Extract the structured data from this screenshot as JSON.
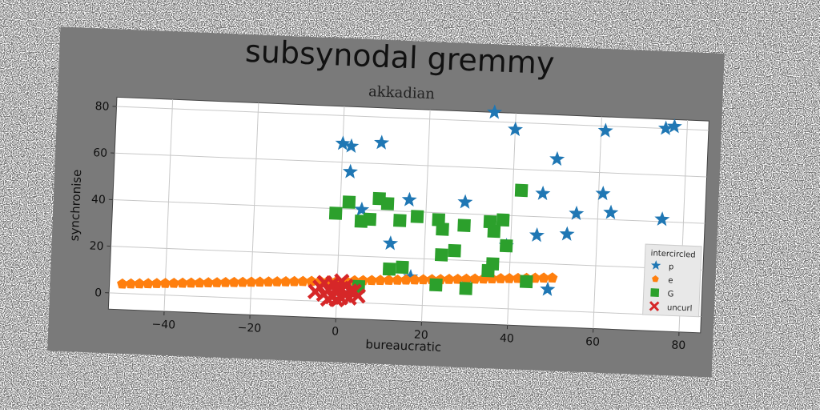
{
  "chart_data": {
    "type": "scatter",
    "title": "subsynodal gremmy",
    "subtitle": "akkadian",
    "xlabel": "bureaucratic",
    "ylabel": "synchronise",
    "xlim": [
      -53,
      85
    ],
    "ylim": [
      -7,
      84
    ],
    "x_ticks": [
      -40,
      -20,
      0,
      20,
      40,
      60,
      80
    ],
    "y_ticks": [
      0,
      20,
      40,
      60,
      80
    ],
    "grid": true,
    "legend": {
      "title": "intercircled",
      "placement": "lower-right"
    },
    "series": [
      {
        "name": "p",
        "marker": "star",
        "color": "#1f77b4",
        "points": [
          [
            35,
            84
          ],
          [
            40,
            77
          ],
          [
            61,
            78
          ],
          [
            75,
            80
          ],
          [
            77,
            81
          ],
          [
            0,
            68
          ],
          [
            2,
            67
          ],
          [
            9,
            69
          ],
          [
            50,
            65
          ],
          [
            2,
            56
          ],
          [
            47,
            50
          ],
          [
            61,
            51
          ],
          [
            16,
            45
          ],
          [
            29,
            45
          ],
          [
            55,
            42
          ],
          [
            63,
            43
          ],
          [
            75,
            41
          ],
          [
            5,
            40
          ],
          [
            53,
            33
          ],
          [
            46,
            32
          ],
          [
            39,
            27
          ],
          [
            12,
            26
          ],
          [
            30,
            11
          ],
          [
            49,
            9
          ],
          [
            23,
            9
          ],
          [
            17,
            12
          ],
          [
            3,
            6
          ]
        ]
      },
      {
        "name": "e",
        "marker": "pentagon",
        "color": "#ff7f0e",
        "points": [
          [
            -50,
            4
          ],
          [
            -48,
            4.2
          ],
          [
            -46,
            4.4
          ],
          [
            -44,
            4.6
          ],
          [
            -42,
            4.8
          ],
          [
            -40,
            5
          ],
          [
            -38,
            5.2
          ],
          [
            -36,
            5.4
          ],
          [
            -34,
            5.6
          ],
          [
            -32,
            5.8
          ],
          [
            -30,
            6
          ],
          [
            -28,
            6.2
          ],
          [
            -26,
            6.4
          ],
          [
            -24,
            6.6
          ],
          [
            -22,
            6.8
          ],
          [
            -20,
            7
          ],
          [
            -18,
            7.2
          ],
          [
            -16,
            7.4
          ],
          [
            -14,
            7.6
          ],
          [
            -12,
            7.8
          ],
          [
            -10,
            8
          ],
          [
            -8,
            8.2
          ],
          [
            -6,
            8.4
          ],
          [
            -4,
            8.6
          ],
          [
            -2,
            8.8
          ],
          [
            0,
            9
          ],
          [
            2,
            9.2
          ],
          [
            4,
            9.4
          ],
          [
            6,
            9.6
          ],
          [
            8,
            9.8
          ],
          [
            10,
            10
          ],
          [
            12,
            10.2
          ],
          [
            14,
            10.4
          ],
          [
            16,
            10.6
          ],
          [
            18,
            10.8
          ],
          [
            20,
            11
          ],
          [
            22,
            11.2
          ],
          [
            24,
            11.4
          ],
          [
            26,
            11.6
          ],
          [
            28,
            11.8
          ],
          [
            30,
            12
          ],
          [
            32,
            12.2
          ],
          [
            34,
            12.4
          ],
          [
            36,
            12.6
          ],
          [
            38,
            12.8
          ],
          [
            40,
            13
          ],
          [
            42,
            13.2
          ],
          [
            44,
            13.4
          ],
          [
            46,
            13.6
          ],
          [
            48,
            13.8
          ],
          [
            50,
            14
          ]
        ]
      },
      {
        "name": "G",
        "marker": "square",
        "color": "#2ca02c",
        "points": [
          [
            -1,
            38
          ],
          [
            2,
            43
          ],
          [
            5,
            35
          ],
          [
            7,
            36
          ],
          [
            9,
            45
          ],
          [
            11,
            43
          ],
          [
            14,
            36
          ],
          [
            18,
            38
          ],
          [
            23,
            37
          ],
          [
            24,
            33
          ],
          [
            29,
            35
          ],
          [
            35,
            37
          ],
          [
            36,
            33
          ],
          [
            38,
            38
          ],
          [
            42,
            51
          ],
          [
            39,
            27
          ],
          [
            24,
            22
          ],
          [
            27,
            24
          ],
          [
            36,
            19
          ],
          [
            35,
            16
          ],
          [
            12,
            15
          ],
          [
            15,
            16
          ],
          [
            44,
            12
          ],
          [
            23,
            9
          ],
          [
            30,
            8
          ],
          [
            5,
            7
          ]
        ]
      },
      {
        "name": "uncurl",
        "marker": "x",
        "color": "#d62728",
        "points": [
          [
            -3,
            3
          ],
          [
            -2,
            5
          ],
          [
            -1,
            2
          ],
          [
            0,
            4
          ],
          [
            1,
            6
          ],
          [
            2,
            3
          ],
          [
            3,
            5
          ],
          [
            -4,
            6
          ],
          [
            -1,
            8
          ],
          [
            0,
            1
          ],
          [
            1,
            2
          ],
          [
            2,
            7
          ],
          [
            -2,
            1
          ],
          [
            3,
            2
          ],
          [
            4,
            5
          ],
          [
            -3,
            8
          ],
          [
            0,
            6
          ],
          [
            1,
            9
          ],
          [
            -5,
            4
          ],
          [
            5,
            3
          ]
        ]
      }
    ]
  }
}
